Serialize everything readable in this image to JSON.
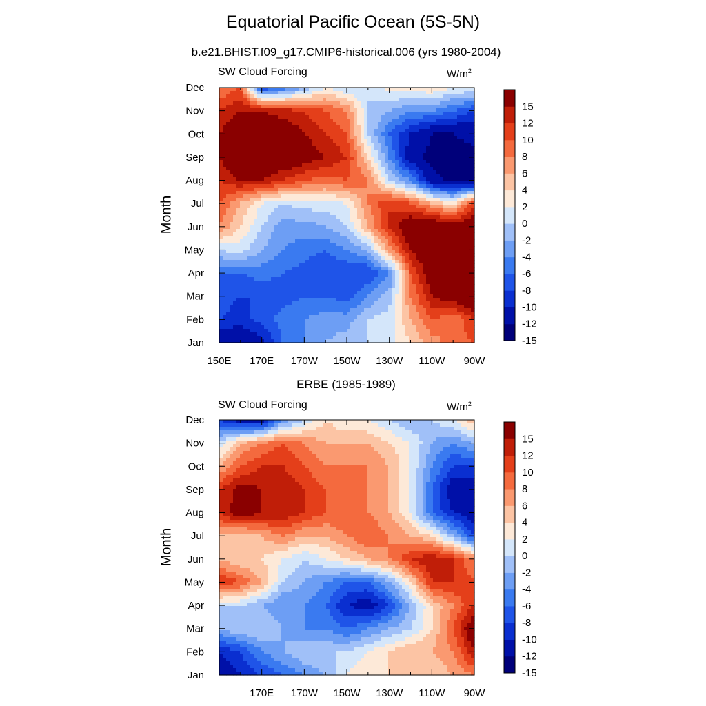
{
  "header": {
    "title": "Equatorial Pacific Ocean (5S-5N)"
  },
  "colors": {
    "palette": [
      "#00007a",
      "#0010a8",
      "#0a2fd0",
      "#1f54e8",
      "#3a7af0",
      "#6d9ef4",
      "#a0c0f8",
      "#d4e6fa",
      "#fde9d8",
      "#fcc4a4",
      "#fa9970",
      "#f46a3e",
      "#e43f1a",
      "#c01e08",
      "#8a0000"
    ],
    "levels": [
      -15,
      -12,
      -10,
      -8,
      -6,
      -4,
      -2,
      0,
      2,
      4,
      6,
      8,
      10,
      12,
      15
    ]
  },
  "panels": [
    {
      "panel_title": "b.e21.BHIST.f09_g17.CMIP6-historical.006 (yrs 1980-2004)",
      "left_label": "SW Cloud Forcing",
      "units_main": "W/m",
      "units_sup": "2",
      "ylabel": "Month"
    },
    {
      "panel_title": "ERBE (1985-1989)",
      "left_label": "SW Cloud Forcing",
      "units_main": "W/m",
      "units_sup": "2",
      "ylabel": "Month"
    }
  ],
  "chart_data": [
    {
      "type": "heatmap",
      "title": "b.e21.BHIST.f09_g17.CMIP6-historical.006 (yrs 1980-2004)",
      "left_string": "SW Cloud Forcing",
      "units": "W/m2",
      "xlabel": "",
      "ylabel": "Month",
      "x_tick_labels": [
        "150E",
        "170E",
        "170W",
        "150W",
        "130W",
        "110W",
        "90W"
      ],
      "y_tick_labels": [
        "Jan",
        "Feb",
        "Mar",
        "Apr",
        "May",
        "Jun",
        "Jul",
        "Aug",
        "Sep",
        "Oct",
        "Nov",
        "Dec"
      ],
      "x_lon": [
        150,
        160,
        170,
        180,
        190,
        200,
        210,
        220,
        230,
        240,
        250,
        260,
        270
      ],
      "colorbar_labels": [
        "15",
        "12",
        "10",
        "8",
        "6",
        "4",
        "2",
        "0",
        "-2",
        "-4",
        "-6",
        "-8",
        "-10",
        "-12",
        "-15"
      ],
      "values": [
        [
          -14,
          -15,
          -13,
          -8,
          -6,
          -4,
          -3,
          -2,
          -1,
          2,
          5,
          7,
          8
        ],
        [
          -10,
          -11,
          -9,
          -7,
          -6,
          -5,
          -5,
          -2,
          -1,
          4,
          8,
          6,
          10
        ],
        [
          -9,
          -10,
          -10,
          -9,
          -8,
          -8,
          -9,
          -6,
          -3,
          6,
          12,
          14,
          16
        ],
        [
          -8,
          -8,
          -7,
          -8,
          -9,
          -10,
          -10,
          -10,
          -6,
          8,
          14,
          16,
          16
        ],
        [
          -2,
          -1,
          -4,
          -6,
          -7,
          -8,
          -6,
          -4,
          5,
          12,
          16,
          16,
          16
        ],
        [
          6,
          2,
          -2,
          -5,
          -5,
          -4,
          -2,
          4,
          10,
          15,
          16,
          14,
          15
        ],
        [
          8,
          4,
          0,
          -2,
          -1,
          -1,
          0,
          6,
          10,
          8,
          4,
          1,
          10
        ],
        [
          10,
          12,
          12,
          10,
          8,
          7,
          8,
          6,
          -2,
          -6,
          -14,
          -16,
          -16
        ],
        [
          12,
          16,
          15,
          15,
          14,
          12,
          10,
          2,
          -6,
          -14,
          -16,
          -16,
          -16
        ],
        [
          12,
          15,
          15,
          14,
          12,
          10,
          8,
          -2,
          -8,
          -12,
          -15,
          -15,
          -14
        ],
        [
          10,
          12,
          12,
          11,
          10,
          8,
          6,
          -2,
          -4,
          -6,
          -6,
          -8,
          -10
        ],
        [
          6,
          8,
          -10,
          -8,
          -4,
          0,
          -2,
          -2,
          1,
          1,
          2,
          0,
          0
        ]
      ],
      "zlim": [
        -16,
        16
      ]
    },
    {
      "type": "heatmap",
      "title": "ERBE (1985-1989)",
      "left_string": "SW Cloud Forcing",
      "units": "W/m2",
      "xlabel": "",
      "ylabel": "Month",
      "x_tick_labels": [
        "170E",
        "170W",
        "150W",
        "130W",
        "110W",
        "90W"
      ],
      "y_tick_labels": [
        "Jan",
        "Feb",
        "Mar",
        "Apr",
        "May",
        "Jun",
        "Jul",
        "Aug",
        "Sep",
        "Oct",
        "Nov",
        "Dec"
      ],
      "x_lon": [
        150,
        160,
        170,
        180,
        190,
        200,
        210,
        220,
        230,
        240,
        250,
        260,
        270
      ],
      "colorbar_labels": [
        "15",
        "12",
        "10",
        "8",
        "6",
        "4",
        "2",
        "0",
        "-2",
        "-4",
        "-6",
        "-8",
        "-10",
        "-12",
        "-15"
      ],
      "values": [
        [
          -14,
          -12,
          -10,
          -8,
          -6,
          -4,
          0,
          2,
          2,
          4,
          2,
          4,
          6
        ],
        [
          -12,
          -10,
          -6,
          -4,
          -2,
          -2,
          -2,
          0,
          2,
          4,
          4,
          6,
          12
        ],
        [
          -4,
          -2,
          -2,
          -4,
          -6,
          -6,
          -8,
          -6,
          -4,
          -2,
          2,
          8,
          15
        ],
        [
          -2,
          -2,
          -4,
          -6,
          -6,
          -8,
          -12,
          -14,
          -10,
          -4,
          2,
          6,
          10
        ],
        [
          10,
          8,
          4,
          -2,
          -4,
          -6,
          -8,
          -8,
          -4,
          2,
          10,
          10,
          8
        ],
        [
          4,
          2,
          2,
          0,
          -2,
          0,
          2,
          4,
          6,
          10,
          12,
          10,
          6
        ],
        [
          4,
          2,
          4,
          6,
          4,
          4,
          6,
          8,
          6,
          4,
          2,
          -4,
          -10
        ],
        [
          10,
          14,
          12,
          12,
          10,
          8,
          8,
          6,
          4,
          0,
          -8,
          -12,
          -14
        ],
        [
          10,
          13,
          12,
          12,
          10,
          8,
          8,
          6,
          4,
          0,
          -8,
          -14,
          -14
        ],
        [
          4,
          8,
          10,
          10,
          8,
          6,
          6,
          6,
          4,
          0,
          -6,
          -10,
          -10
        ],
        [
          -2,
          4,
          6,
          8,
          6,
          4,
          4,
          4,
          2,
          0,
          -4,
          -6,
          -4
        ],
        [
          -10,
          -14,
          -14,
          -6,
          -2,
          2,
          0,
          0,
          -2,
          -4,
          -2,
          0,
          4
        ]
      ],
      "zlim": [
        -16,
        16
      ]
    }
  ]
}
